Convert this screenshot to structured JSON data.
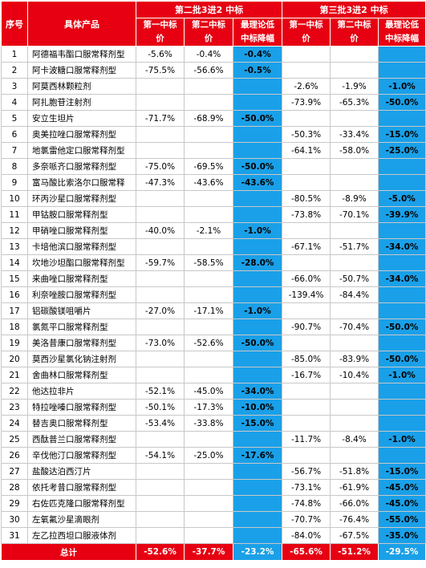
{
  "headers": {
    "seq": "序号",
    "product": "具体产品",
    "batch2": "第二批3进2 中标",
    "batch3": "第三批3进2 中标",
    "first_bid": [
      "第一中标",
      "价"
    ],
    "second_bid": [
      "第二中标",
      "价"
    ],
    "max_diff": [
      "最理论低",
      "中标降幅"
    ]
  },
  "rows": [
    {
      "n": "1",
      "p": "阿德福韦酯口服常释剂型",
      "b2a": "-5.6%",
      "b2b": "-0.4%",
      "b2c": "-0.4%",
      "b3a": "",
      "b3b": "",
      "b3c": ""
    },
    {
      "n": "2",
      "p": "阿卡波糖口服常释剂型",
      "b2a": "-75.5%",
      "b2b": "-56.6%",
      "b2c": "-0.5%",
      "b3a": "",
      "b3b": "",
      "b3c": ""
    },
    {
      "n": "3",
      "p": "阿莫西林颗粒剂",
      "b2a": "",
      "b2b": "",
      "b2c": "",
      "b3a": "-2.6%",
      "b3b": "-1.9%",
      "b3c": "-1.0%"
    },
    {
      "n": "4",
      "p": "阿扎胞苷注射剂",
      "b2a": "",
      "b2b": "",
      "b2c": "",
      "b3a": "-73.9%",
      "b3b": "-65.3%",
      "b3c": "-50.0%"
    },
    {
      "n": "5",
      "p": "安立生坦片",
      "b2a": "-71.7%",
      "b2b": "-68.9%",
      "b2c": "-50.0%",
      "b3a": "",
      "b3b": "",
      "b3c": ""
    },
    {
      "n": "6",
      "p": "奥美拉唑口服常释剂型",
      "b2a": "",
      "b2b": "",
      "b2c": "",
      "b3a": "-50.3%",
      "b3b": "-33.4%",
      "b3c": "-15.0%"
    },
    {
      "n": "7",
      "p": "地氯雷他定口服常释剂型",
      "b2a": "",
      "b2b": "",
      "b2c": "",
      "b3a": "-64.1%",
      "b3b": "-58.0%",
      "b3c": "-25.0%"
    },
    {
      "n": "8",
      "p": "多奈哌齐口服常释剂型",
      "b2a": "-75.0%",
      "b2b": "-69.5%",
      "b2c": "-50.0%",
      "b3a": "",
      "b3b": "",
      "b3c": ""
    },
    {
      "n": "9",
      "p": "富马酸比索洛尔口服常释",
      "b2a": "-47.3%",
      "b2b": "-43.6%",
      "b2c": "-43.6%",
      "b3a": "",
      "b3b": "",
      "b3c": ""
    },
    {
      "n": "10",
      "p": "环丙沙星口服常释剂型",
      "b2a": "",
      "b2b": "",
      "b2c": "",
      "b3a": "-80.5%",
      "b3b": "-8.9%",
      "b3c": "-5.0%"
    },
    {
      "n": "11",
      "p": "甲钴胺口服常释剂型",
      "b2a": "",
      "b2b": "",
      "b2c": "",
      "b3a": "-73.8%",
      "b3b": "-70.1%",
      "b3c": "-39.9%"
    },
    {
      "n": "12",
      "p": "甲硝唑口服常释剂型",
      "b2a": "-40.0%",
      "b2b": "-2.1%",
      "b2c": "-1.0%",
      "b3a": "",
      "b3b": "",
      "b3c": ""
    },
    {
      "n": "13",
      "p": "卡培他滨口服常释剂型",
      "b2a": "",
      "b2b": "",
      "b2c": "",
      "b3a": "-67.1%",
      "b3b": "-51.7%",
      "b3c": "-34.0%"
    },
    {
      "n": "14",
      "p": "坎地沙坦酯口服常释剂型",
      "b2a": "-59.7%",
      "b2b": "-58.5%",
      "b2c": "-28.0%",
      "b3a": "",
      "b3b": "",
      "b3c": ""
    },
    {
      "n": "15",
      "p": "来曲唑口服常释剂型",
      "b2a": "",
      "b2b": "",
      "b2c": "",
      "b3a": "-66.0%",
      "b3b": "-50.7%",
      "b3c": "-34.0%"
    },
    {
      "n": "16",
      "p": "利奈唑胺口服常释剂型",
      "b2a": "",
      "b2b": "",
      "b2c": "",
      "b3a": "-139.4%",
      "b3b": "-84.4%",
      "b3c": ""
    },
    {
      "n": "17",
      "p": "铝碳酸镁咀嚼片",
      "b2a": "-27.0%",
      "b2b": "-17.1%",
      "b2c": "-1.0%",
      "b3a": "",
      "b3b": "",
      "b3c": ""
    },
    {
      "n": "18",
      "p": "氯氮平口服常释剂型",
      "b2a": "",
      "b2b": "",
      "b2c": "",
      "b3a": "-90.7%",
      "b3b": "-70.4%",
      "b3c": "-50.0%"
    },
    {
      "n": "19",
      "p": "美洛昔康口服常释剂型",
      "b2a": "-73.0%",
      "b2b": "-52.6%",
      "b2c": "-50.0%",
      "b3a": "",
      "b3b": "",
      "b3c": ""
    },
    {
      "n": "20",
      "p": "莫西沙星氯化钠注射剂",
      "b2a": "",
      "b2b": "",
      "b2c": "",
      "b3a": "-85.0%",
      "b3b": "-83.9%",
      "b3c": "-50.0%"
    },
    {
      "n": "21",
      "p": "舍曲林口服常释剂型",
      "b2a": "",
      "b2b": "",
      "b2c": "",
      "b3a": "-16.7%",
      "b3b": "-10.4%",
      "b3c": "-1.0%"
    },
    {
      "n": "22",
      "p": "他达拉非片",
      "b2a": "-52.1%",
      "b2b": "-45.0%",
      "b2c": "-34.0%",
      "b3a": "",
      "b3b": "",
      "b3c": ""
    },
    {
      "n": "23",
      "p": "特拉唑嗪口服常释剂型",
      "b2a": "-50.1%",
      "b2b": "-17.3%",
      "b2c": "-10.0%",
      "b3a": "",
      "b3b": "",
      "b3c": ""
    },
    {
      "n": "24",
      "p": "替吉奥口服常释剂型",
      "b2a": "-53.4%",
      "b2b": "-33.8%",
      "b2c": "-15.0%",
      "b3a": "",
      "b3b": "",
      "b3c": ""
    },
    {
      "n": "25",
      "p": "西酞普兰口服常释剂型",
      "b2a": "",
      "b2b": "",
      "b2c": "",
      "b3a": "-11.7%",
      "b3b": "-8.4%",
      "b3c": "-1.0%"
    },
    {
      "n": "26",
      "p": "辛伐他汀口服常释剂型",
      "b2a": "-54.1%",
      "b2b": "-25.0%",
      "b2c": "-17.6%",
      "b3a": "",
      "b3b": "",
      "b3c": ""
    },
    {
      "n": "27",
      "p": "盐酸达泊西汀片",
      "b2a": "",
      "b2b": "",
      "b2c": "",
      "b3a": "-56.7%",
      "b3b": "-51.8%",
      "b3c": "-15.0%"
    },
    {
      "n": "28",
      "p": "依托考昔口服常释剂型",
      "b2a": "",
      "b2b": "",
      "b2c": "",
      "b3a": "-73.1%",
      "b3b": "-61.9%",
      "b3c": "-45.0%"
    },
    {
      "n": "29",
      "p": "右佐匹克隆口服常释剂型",
      "b2a": "",
      "b2b": "",
      "b2c": "",
      "b3a": "-74.8%",
      "b3b": "-66.0%",
      "b3c": "-45.0%"
    },
    {
      "n": "30",
      "p": "左氧氟沙星滴眼剂",
      "b2a": "",
      "b2b": "",
      "b2c": "",
      "b3a": "-70.7%",
      "b3b": "-76.4%",
      "b3c": "-55.0%"
    },
    {
      "n": "31",
      "p": "左乙拉西坦口服液体剂",
      "b2a": "",
      "b2b": "",
      "b2c": "",
      "b3a": "-84.0%",
      "b3b": "-67.5%",
      "b3c": "-35.0%"
    }
  ],
  "total": {
    "label": "总计",
    "b2a": "-52.6%",
    "b2b": "-37.7%",
    "b2c": "-23.2%",
    "b3a": "-65.6%",
    "b3b": "-51.2%",
    "b3c": "-29.5%"
  }
}
